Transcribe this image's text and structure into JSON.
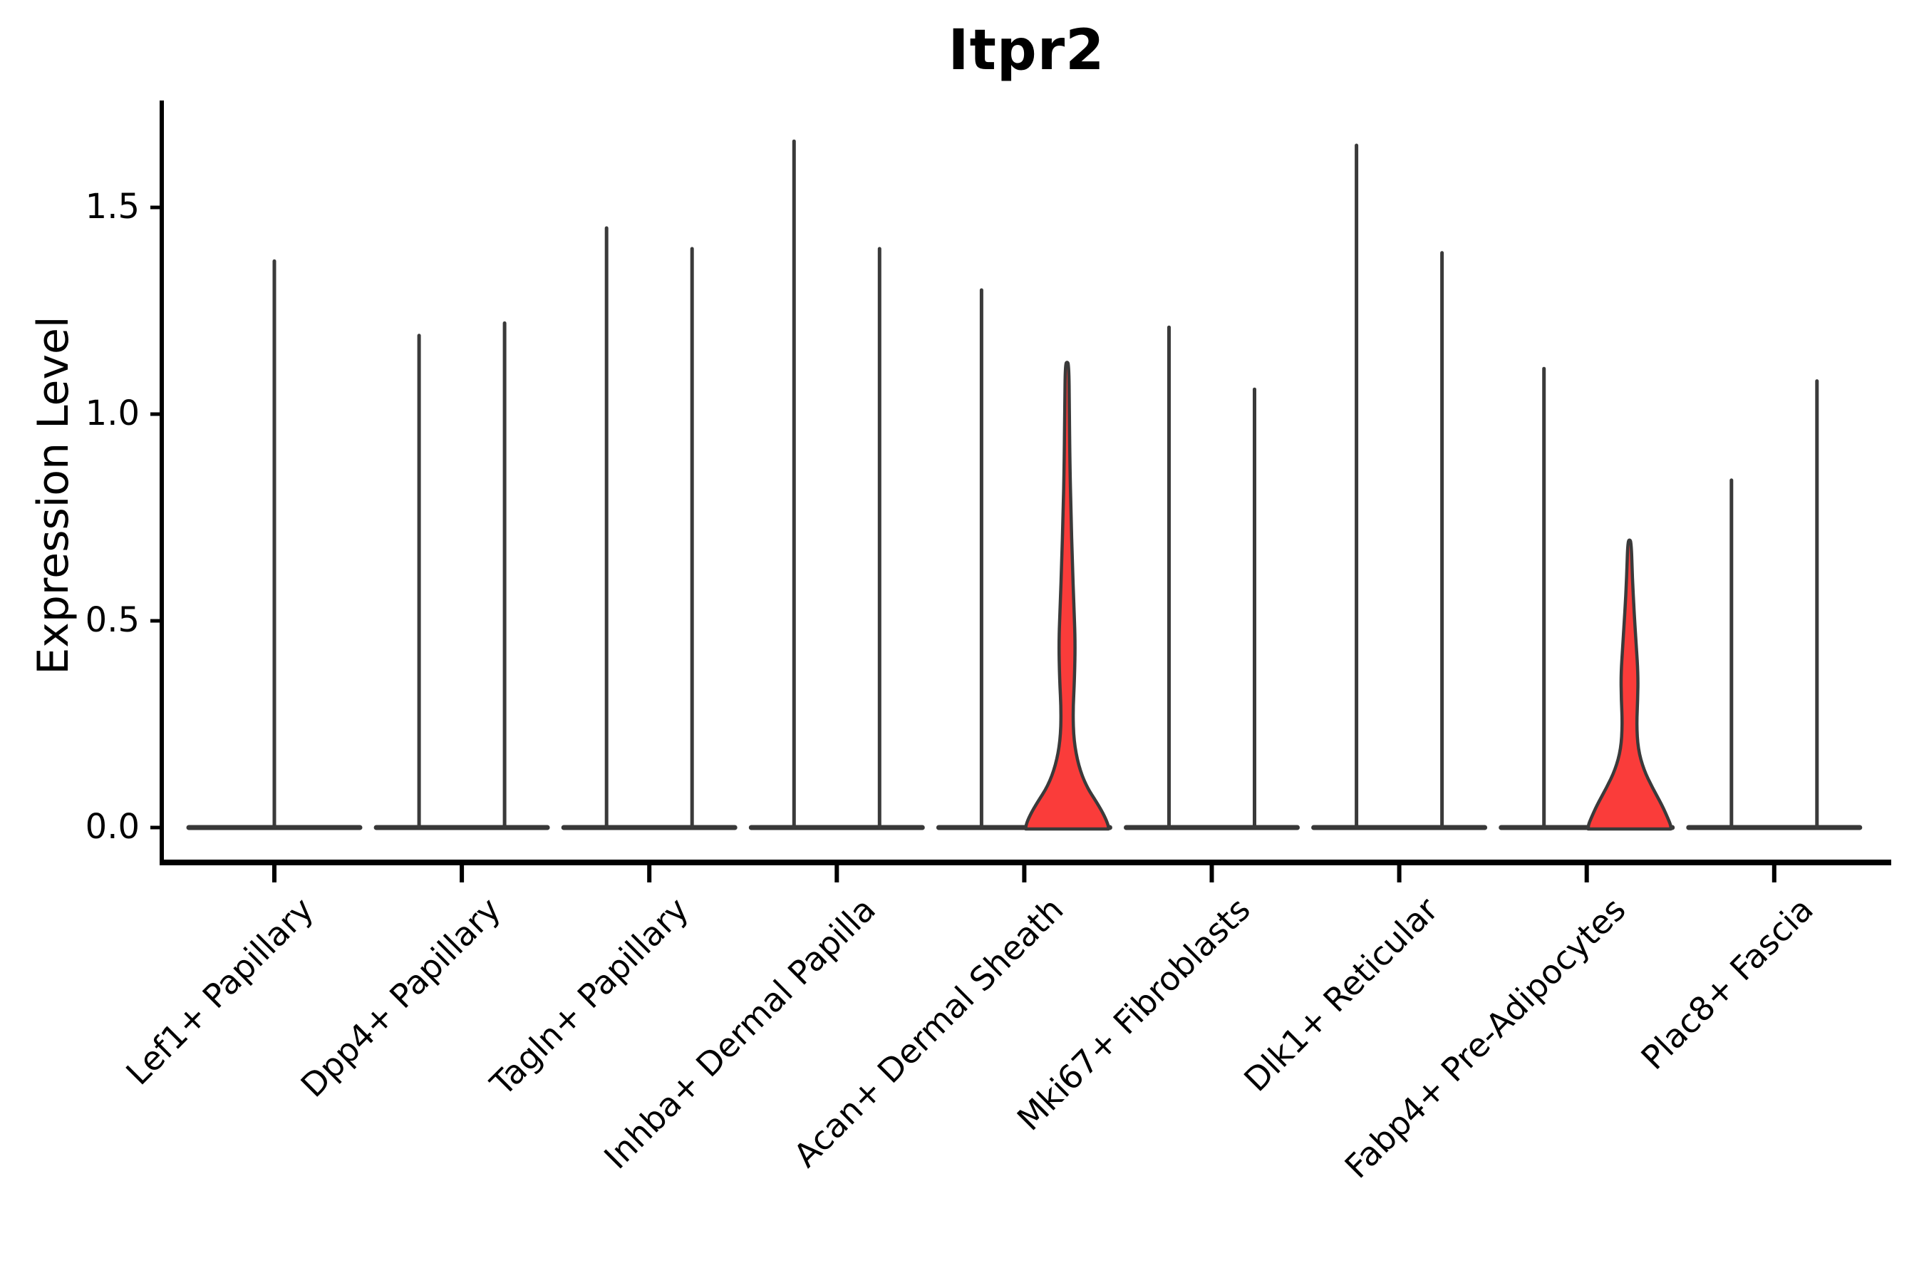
{
  "title": "Itpr2",
  "chart_data": {
    "type": "violin",
    "title": "Itpr2",
    "xlabel": "",
    "ylabel": "Expression Level",
    "ylim": [
      0,
      1.75
    ],
    "grid": false,
    "legend": null,
    "yticks": [
      {
        "value": 0.0,
        "label": "0.0"
      },
      {
        "value": 0.5,
        "label": "0.5"
      },
      {
        "value": 1.0,
        "label": "1.0"
      },
      {
        "value": 1.5,
        "label": "1.5"
      }
    ],
    "colors": {
      "highlight_fill": "#fa3c3a",
      "violin_stroke": "#3a3a3a",
      "baseline_stroke": "#383838",
      "axis_color": "#000000"
    },
    "description": "Violin plot of Itpr2 expression per fibroblast cluster; most violins collapse to a flat base at 0 with a thin spike to the max-expressing cell; two violins (right violin of Acan+ Dermal Sheath and of Fabp4+ Pre-Adipocytes) show substantial density and are filled red.",
    "categories": [
      {
        "label": "Lef1+ Papillary",
        "violins": [
          {
            "side": "center",
            "max_expression": 1.37,
            "highlighted": false
          }
        ]
      },
      {
        "label": "Dpp4+ Papillary",
        "violins": [
          {
            "side": "left",
            "max_expression": 1.19,
            "highlighted": false
          },
          {
            "side": "right",
            "max_expression": 1.22,
            "highlighted": false
          }
        ]
      },
      {
        "label": "Tagln+ Papillary",
        "violins": [
          {
            "side": "left",
            "max_expression": 1.45,
            "highlighted": false
          },
          {
            "side": "right",
            "max_expression": 1.4,
            "highlighted": false
          }
        ]
      },
      {
        "label": "Inhba+ Dermal Papilla",
        "violins": [
          {
            "side": "left",
            "max_expression": 1.66,
            "highlighted": false
          },
          {
            "side": "right",
            "max_expression": 1.4,
            "highlighted": false
          }
        ]
      },
      {
        "label": "Acan+ Dermal Sheath",
        "violins": [
          {
            "side": "left",
            "max_expression": 1.3,
            "highlighted": false
          },
          {
            "side": "right",
            "max_expression": 1.12,
            "highlighted": true,
            "profile_value_halfwidth": [
              [
                1.12,
                2.5
              ],
              [
                1.02,
                3.2
              ],
              [
                0.88,
                4.0
              ],
              [
                0.76,
                5.5
              ],
              [
                0.64,
                7.5
              ],
              [
                0.54,
                9.5
              ],
              [
                0.45,
                11.5
              ],
              [
                0.36,
                10.5
              ],
              [
                0.28,
                8.2
              ],
              [
                0.21,
                9.5
              ],
              [
                0.15,
                16
              ],
              [
                0.1,
                27
              ],
              [
                0.06,
                42
              ],
              [
                0.03,
                52
              ],
              [
                0.005,
                58
              ]
            ]
          }
        ]
      },
      {
        "label": "Mki67+ Fibroblasts",
        "violins": [
          {
            "side": "left",
            "max_expression": 1.21,
            "highlighted": false
          },
          {
            "side": "right",
            "max_expression": 1.06,
            "highlighted": false
          }
        ]
      },
      {
        "label": "Dlk1+ Reticular",
        "violins": [
          {
            "side": "left",
            "max_expression": 1.65,
            "highlighted": false
          },
          {
            "side": "right",
            "max_expression": 1.39,
            "highlighted": false
          }
        ]
      },
      {
        "label": "Fabp4+ Pre-Adipocytes",
        "violins": [
          {
            "side": "left",
            "max_expression": 1.11,
            "highlighted": false
          },
          {
            "side": "right",
            "max_expression": 0.69,
            "highlighted": true,
            "profile_value_halfwidth": [
              [
                0.69,
                2.5
              ],
              [
                0.605,
                4.0
              ],
              [
                0.52,
                6.5
              ],
              [
                0.44,
                9.5
              ],
              [
                0.37,
                12
              ],
              [
                0.31,
                11.5
              ],
              [
                0.25,
                10
              ],
              [
                0.19,
                12
              ],
              [
                0.14,
                20
              ],
              [
                0.097,
                32
              ],
              [
                0.053,
                46
              ],
              [
                0.022,
                54
              ],
              [
                0.005,
                58
              ]
            ]
          }
        ]
      },
      {
        "label": "Plac8+ Fascia",
        "violins": [
          {
            "side": "left",
            "max_expression": 0.84,
            "highlighted": false
          },
          {
            "side": "right",
            "max_expression": 1.08,
            "highlighted": false
          }
        ]
      }
    ]
  }
}
